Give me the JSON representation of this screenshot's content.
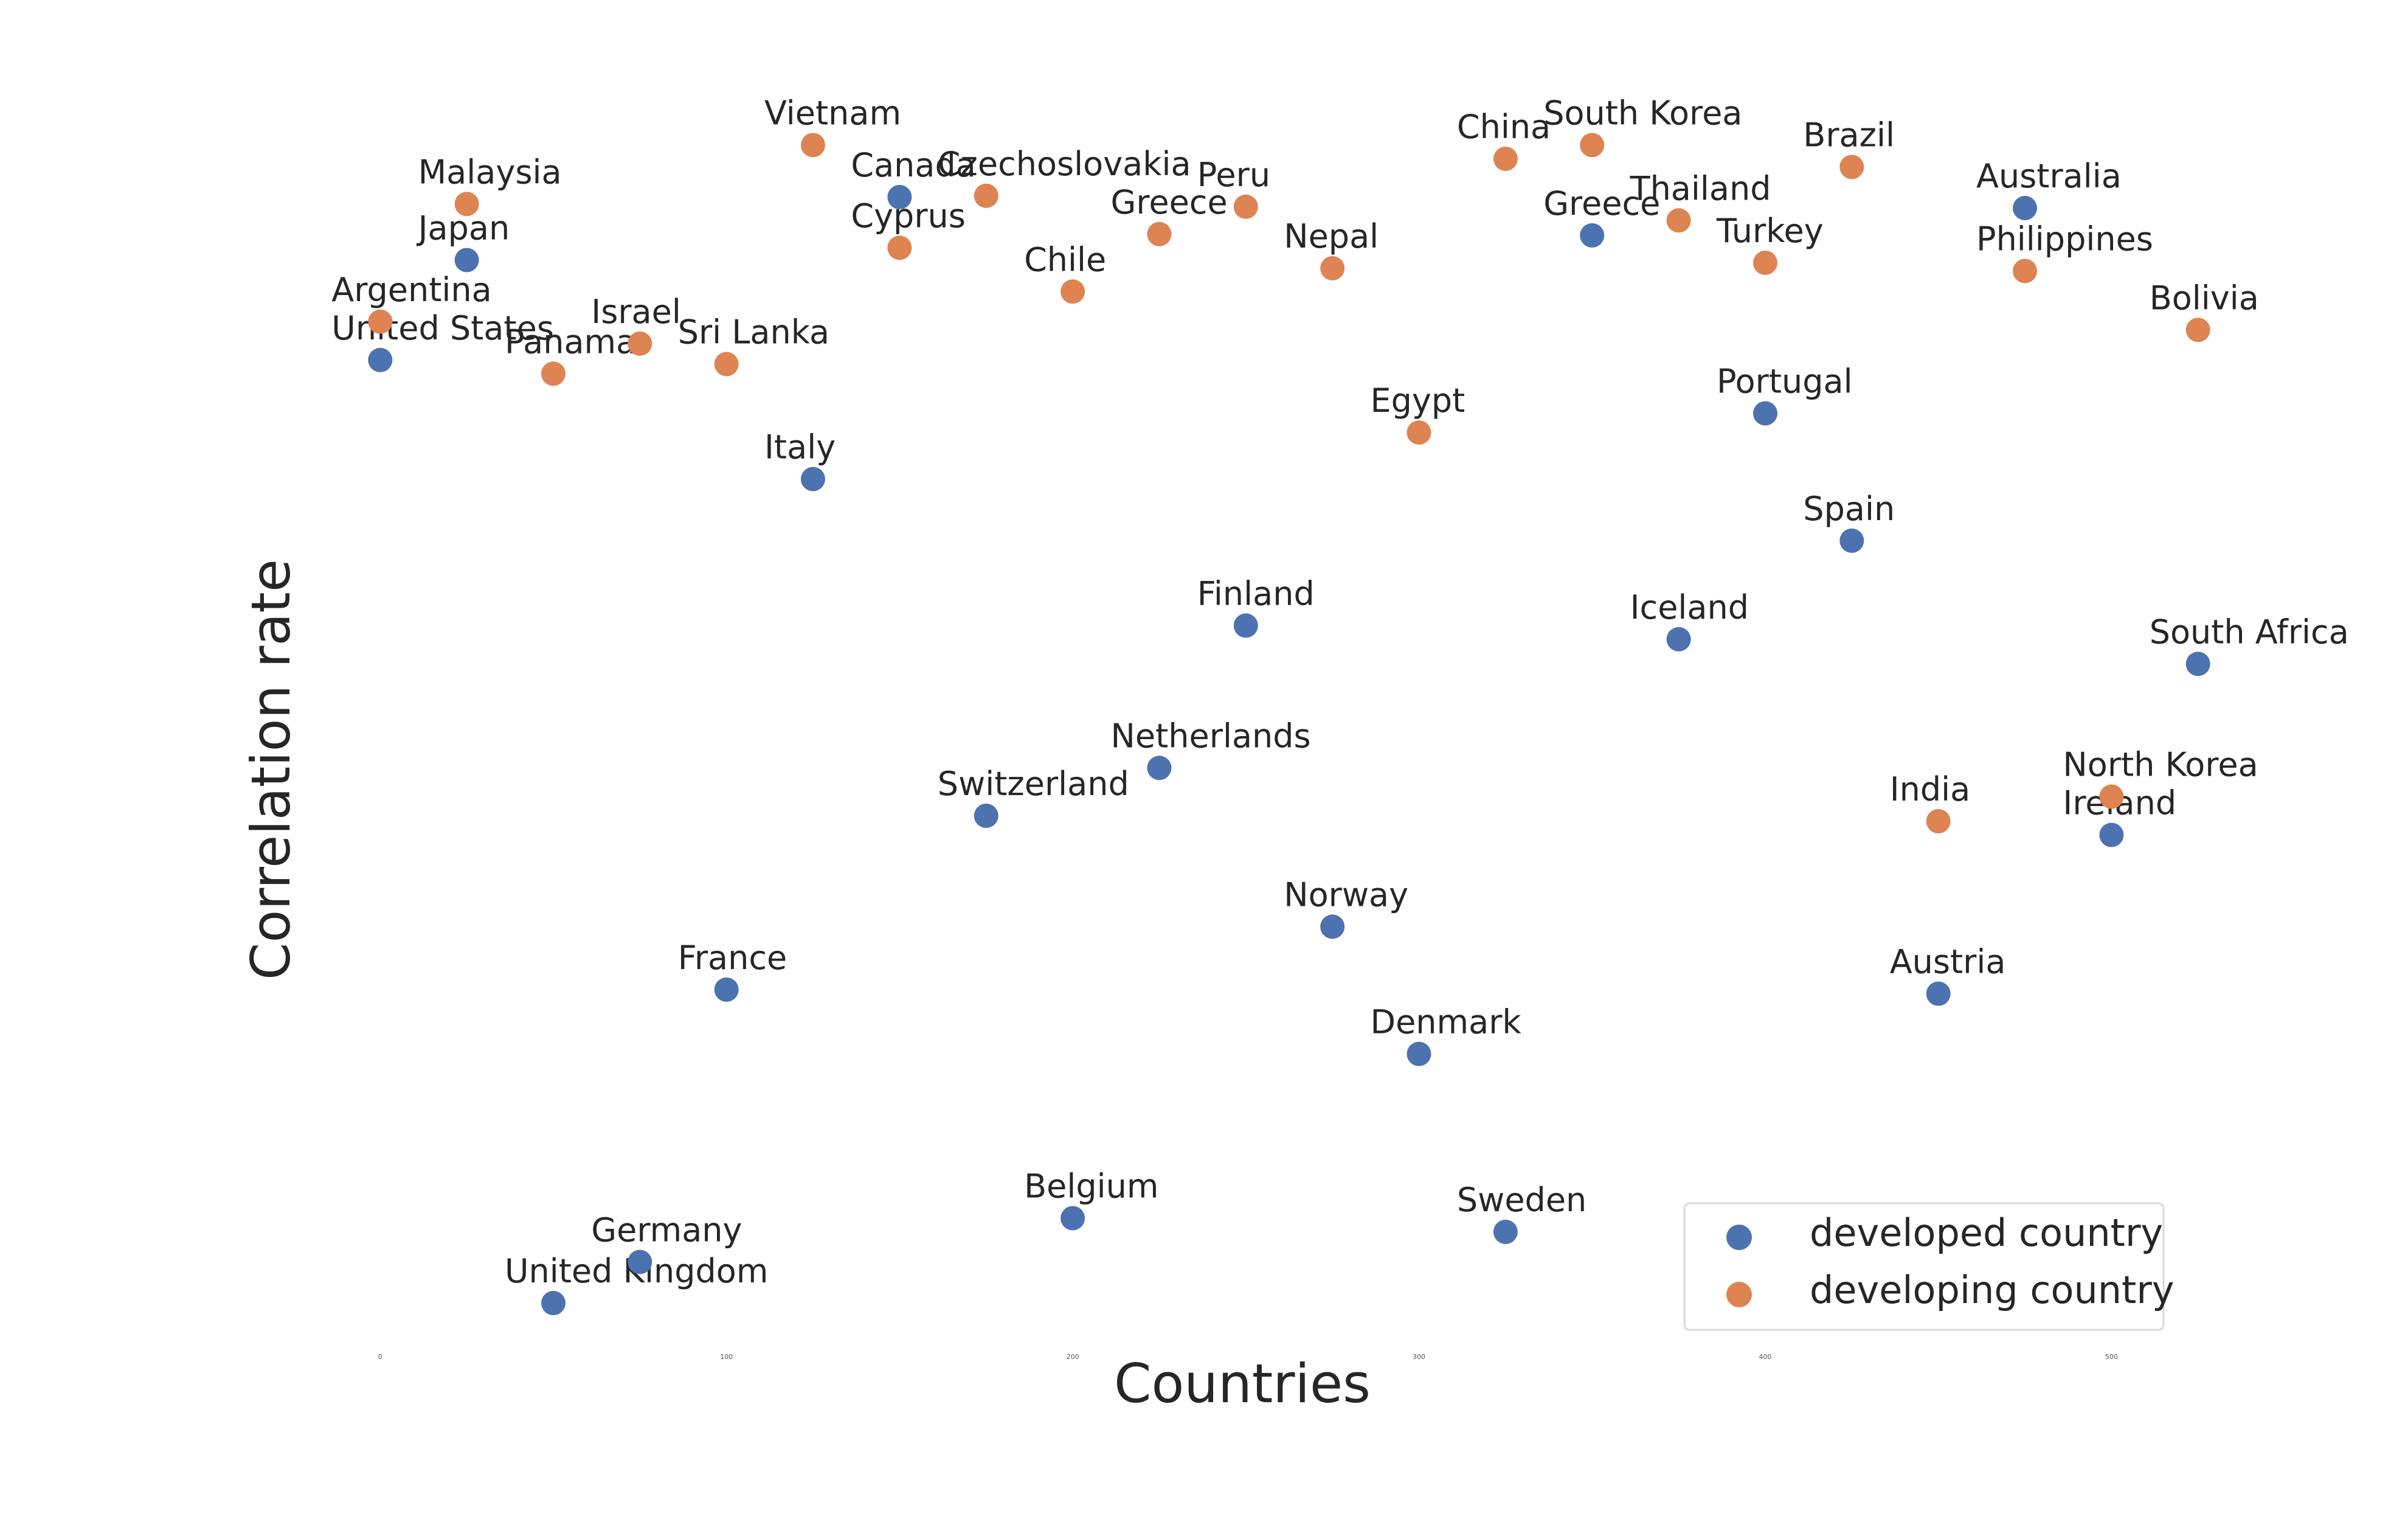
{
  "chart_data": {
    "type": "scatter",
    "title": "",
    "xlabel": "Countries",
    "ylabel": "Correlation rate",
    "xlim": [
      -22,
      547
    ],
    "ylim": [
      0,
      1
    ],
    "x_ticks": [
      0,
      100,
      200,
      300,
      400,
      500
    ],
    "y_ticks": [],
    "grid": false,
    "legend_position": "lower-right",
    "series": [
      {
        "name": "developed country",
        "color": "#4c72b0",
        "points": [
          {
            "x": 0,
            "y": 0.737,
            "label": "United States"
          },
          {
            "x": 25,
            "y": 0.81,
            "label": "Japan"
          },
          {
            "x": 50,
            "y": 0.048,
            "label": "United Kingdom"
          },
          {
            "x": 75,
            "y": 0.078,
            "label": "Germany"
          },
          {
            "x": 100,
            "y": 0.277,
            "label": "France"
          },
          {
            "x": 125,
            "y": 0.65,
            "label": "Italy"
          },
          {
            "x": 150,
            "y": 0.856,
            "label": "Canada"
          },
          {
            "x": 175,
            "y": 0.404,
            "label": "Switzerland"
          },
          {
            "x": 200,
            "y": 0.11,
            "label": "Belgium"
          },
          {
            "x": 225,
            "y": 0.439,
            "label": "Netherlands"
          },
          {
            "x": 250,
            "y": 0.543,
            "label": "Finland"
          },
          {
            "x": 275,
            "y": 0.323,
            "label": "Norway"
          },
          {
            "x": 300,
            "y": 0.23,
            "label": "Denmark"
          },
          {
            "x": 325,
            "y": 0.1,
            "label": "Sweden"
          },
          {
            "x": 350,
            "y": 0.828,
            "label": "Greece"
          },
          {
            "x": 375,
            "y": 0.533,
            "label": "Iceland"
          },
          {
            "x": 400,
            "y": 0.698,
            "label": "Portugal"
          },
          {
            "x": 425,
            "y": 0.605,
            "label": "Spain"
          },
          {
            "x": 450,
            "y": 0.274,
            "label": "Austria"
          },
          {
            "x": 475,
            "y": 0.848,
            "label": "Australia"
          },
          {
            "x": 500,
            "y": 0.39,
            "label": "Ireland"
          },
          {
            "x": 525,
            "y": 0.515,
            "label": "South Africa"
          }
        ]
      },
      {
        "name": "developing country",
        "color": "#dd8452",
        "points": [
          {
            "x": 0,
            "y": 0.765,
            "label": "Argentina"
          },
          {
            "x": 25,
            "y": 0.851,
            "label": "Malaysia"
          },
          {
            "x": 50,
            "y": 0.727,
            "label": "Panama"
          },
          {
            "x": 75,
            "y": 0.749,
            "label": "Israel"
          },
          {
            "x": 100,
            "y": 0.734,
            "label": "Sri Lanka"
          },
          {
            "x": 125,
            "y": 0.894,
            "label": "Vietnam"
          },
          {
            "x": 150,
            "y": 0.819,
            "label": "Cyprus"
          },
          {
            "x": 175,
            "y": 0.857,
            "label": "Czechoslovakia"
          },
          {
            "x": 200,
            "y": 0.787,
            "label": "Chile"
          },
          {
            "x": 225,
            "y": 0.829,
            "label": "Greece"
          },
          {
            "x": 250,
            "y": 0.849,
            "label": "Peru"
          },
          {
            "x": 275,
            "y": 0.804,
            "label": "Nepal"
          },
          {
            "x": 300,
            "y": 0.684,
            "label": "Egypt"
          },
          {
            "x": 325,
            "y": 0.884,
            "label": "China"
          },
          {
            "x": 350,
            "y": 0.894,
            "label": "South Korea"
          },
          {
            "x": 375,
            "y": 0.839,
            "label": "Thailand"
          },
          {
            "x": 400,
            "y": 0.808,
            "label": "Turkey"
          },
          {
            "x": 425,
            "y": 0.878,
            "label": "Brazil"
          },
          {
            "x": 450,
            "y": 0.4,
            "label": "India"
          },
          {
            "x": 475,
            "y": 0.802,
            "label": "Philippines"
          },
          {
            "x": 500,
            "y": 0.418,
            "label": "North Korea"
          },
          {
            "x": 525,
            "y": 0.759,
            "label": "Bolivia"
          }
        ]
      }
    ]
  }
}
